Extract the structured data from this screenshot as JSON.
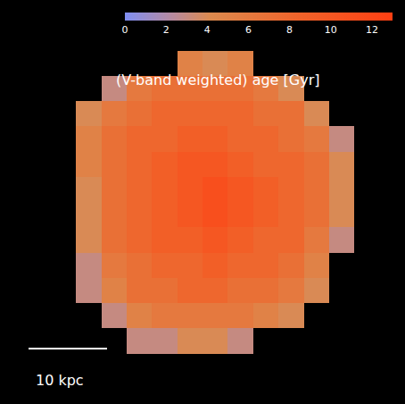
{
  "chart_data": {
    "type": "heatmap",
    "title": "(V-band weighted) age [Gyr]",
    "tick_labels": false,
    "colorbar": {
      "range": [
        0,
        13
      ],
      "ticks": [
        0,
        2,
        4,
        6,
        8,
        10,
        12
      ]
    },
    "scale_bar": {
      "label": "10 kpc"
    },
    "cells": [
      [
        null,
        null,
        null,
        null,
        null,
        null,
        null,
        null,
        null,
        null,
        null,
        null,
        null,
        null,
        null,
        null
      ],
      [
        null,
        null,
        null,
        null,
        null,
        null,
        null,
        null,
        null,
        null,
        null,
        null,
        null,
        null,
        null,
        null
      ],
      [
        null,
        null,
        null,
        null,
        null,
        null,
        null,
        5,
        4,
        5,
        null,
        null,
        null,
        null,
        null,
        null
      ],
      [
        null,
        null,
        null,
        null,
        3,
        6,
        7,
        7,
        7,
        7,
        6,
        4,
        null,
        null,
        null,
        null
      ],
      [
        null,
        null,
        null,
        4,
        6,
        7,
        8,
        8,
        8,
        8,
        7,
        7,
        4,
        null,
        null,
        null
      ],
      [
        null,
        null,
        null,
        5,
        7,
        8,
        8,
        9,
        9,
        8,
        8,
        7,
        6,
        3,
        null,
        null
      ],
      [
        null,
        null,
        null,
        5,
        7,
        8,
        9,
        10,
        10,
        9,
        8,
        8,
        7,
        4,
        null,
        null
      ],
      [
        null,
        null,
        null,
        4,
        7,
        8,
        9,
        10,
        11,
        10,
        9,
        8,
        7,
        4,
        null,
        null
      ],
      [
        null,
        null,
        null,
        4,
        7,
        8,
        9,
        10,
        11,
        10,
        9,
        8,
        7,
        4,
        null,
        null
      ],
      [
        null,
        null,
        null,
        4,
        7,
        8,
        9,
        9,
        10,
        9,
        8,
        8,
        6,
        3,
        null,
        null
      ],
      [
        null,
        null,
        null,
        3,
        6,
        7,
        8,
        8,
        9,
        8,
        8,
        7,
        5,
        null,
        null,
        null
      ],
      [
        null,
        null,
        null,
        3,
        5,
        7,
        7,
        8,
        8,
        7,
        7,
        6,
        4,
        null,
        null,
        null
      ],
      [
        null,
        null,
        null,
        null,
        3,
        5,
        6,
        6,
        6,
        6,
        5,
        4,
        null,
        null,
        null,
        null
      ],
      [
        null,
        null,
        null,
        null,
        null,
        3,
        3,
        4,
        4,
        3,
        null,
        null,
        null,
        null,
        null,
        null
      ],
      [
        null,
        null,
        null,
        null,
        null,
        null,
        null,
        null,
        null,
        null,
        null,
        null,
        null,
        null,
        null,
        null
      ],
      [
        null,
        null,
        null,
        null,
        null,
        null,
        null,
        null,
        null,
        null,
        null,
        null,
        null,
        null,
        null,
        null
      ]
    ]
  }
}
